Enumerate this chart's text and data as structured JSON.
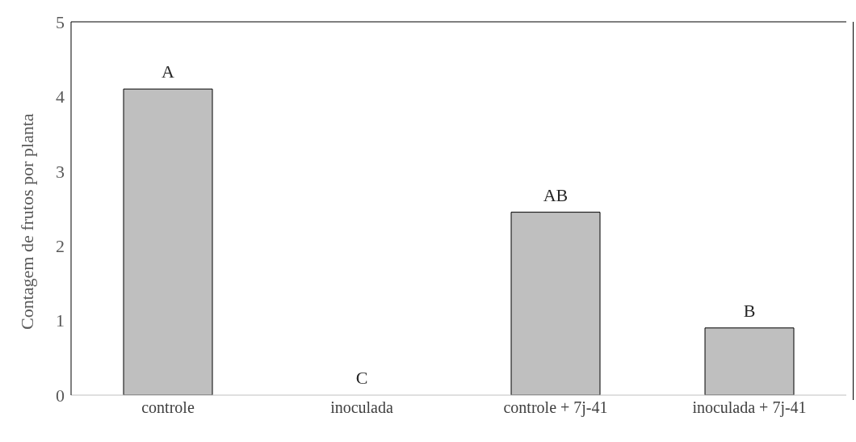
{
  "chart_data": {
    "type": "bar",
    "ylabel": "Contagem de frutos por planta",
    "categories": [
      "controle",
      "inoculada",
      "controle + 7j-41",
      "inoculada + 7j-41"
    ],
    "values": [
      4.1,
      0,
      2.45,
      0.9
    ],
    "color": "#bfbfbf",
    "ylim": [
      0,
      5
    ],
    "yticks": [
      0,
      1,
      2,
      3,
      4,
      5
    ],
    "grid": false,
    "annotations": [
      {
        "text": "A",
        "x": "controle",
        "y": 4.1
      },
      {
        "text": "C",
        "x": "inoculada",
        "y": 0
      },
      {
        "text": "AB",
        "x": "controle + 7j-41",
        "y": 2.45
      },
      {
        "text": "B",
        "x": "inoculada + 7j-41",
        "y": 0.9
      }
    ]
  }
}
